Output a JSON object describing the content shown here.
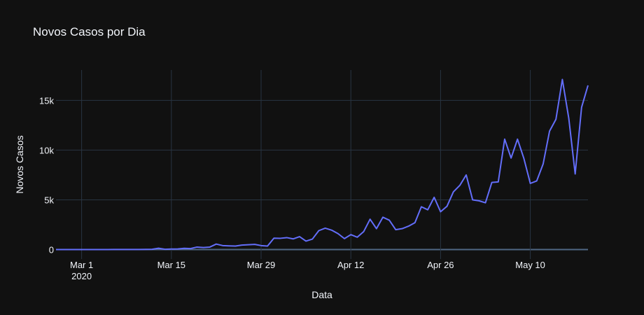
{
  "chart_data": {
    "type": "line",
    "title": "Novos Casos por Dia",
    "xlabel": "Data",
    "ylabel": "Novos Casos",
    "x": [
      "2020-02-26",
      "2020-02-27",
      "2020-02-28",
      "2020-02-29",
      "2020-03-01",
      "2020-03-02",
      "2020-03-03",
      "2020-03-04",
      "2020-03-05",
      "2020-03-06",
      "2020-03-07",
      "2020-03-08",
      "2020-03-09",
      "2020-03-10",
      "2020-03-11",
      "2020-03-12",
      "2020-03-13",
      "2020-03-14",
      "2020-03-15",
      "2020-03-16",
      "2020-03-17",
      "2020-03-18",
      "2020-03-19",
      "2020-03-20",
      "2020-03-21",
      "2020-03-22",
      "2020-03-23",
      "2020-03-24",
      "2020-03-25",
      "2020-03-26",
      "2020-03-27",
      "2020-03-28",
      "2020-03-29",
      "2020-03-30",
      "2020-03-31",
      "2020-04-01",
      "2020-04-02",
      "2020-04-03",
      "2020-04-04",
      "2020-04-05",
      "2020-04-06",
      "2020-04-07",
      "2020-04-08",
      "2020-04-09",
      "2020-04-10",
      "2020-04-11",
      "2020-04-12",
      "2020-04-13",
      "2020-04-14",
      "2020-04-15",
      "2020-04-16",
      "2020-04-17",
      "2020-04-18",
      "2020-04-19",
      "2020-04-20",
      "2020-04-21",
      "2020-04-22",
      "2020-04-23",
      "2020-04-24",
      "2020-04-25",
      "2020-04-26",
      "2020-04-27",
      "2020-04-28",
      "2020-04-29",
      "2020-04-30",
      "2020-05-01",
      "2020-05-02",
      "2020-05-03",
      "2020-05-04",
      "2020-05-05",
      "2020-05-06",
      "2020-05-07",
      "2020-05-08",
      "2020-05-09",
      "2020-05-10",
      "2020-05-11",
      "2020-05-12",
      "2020-05-13",
      "2020-05-14",
      "2020-05-15",
      "2020-05-16",
      "2020-05-17",
      "2020-05-18",
      "2020-05-19"
    ],
    "values": [
      1,
      0,
      0,
      1,
      0,
      0,
      0,
      1,
      4,
      6,
      6,
      6,
      5,
      6,
      18,
      25,
      130,
      30,
      50,
      60,
      120,
      100,
      250,
      200,
      250,
      550,
      400,
      370,
      350,
      450,
      480,
      520,
      400,
      350,
      1140,
      1130,
      1200,
      1070,
      1300,
      850,
      1050,
      1900,
      2150,
      1950,
      1600,
      1100,
      1500,
      1240,
      1800,
      3050,
      2100,
      3250,
      2950,
      2000,
      2100,
      2350,
      2700,
      4300,
      4000,
      5250,
      3800,
      4350,
      5800,
      6450,
      7500,
      5000,
      4900,
      4700,
      6750,
      6800,
      11100,
      9200,
      11100,
      9150,
      6650,
      6900,
      8600,
      11900,
      13100,
      17100,
      13200,
      7600,
      14300,
      16500
    ],
    "color": "#636efa",
    "xlim": [
      "2020-02-26",
      "2020-05-19"
    ],
    "xticks": [
      {
        "value": "2020-03-01",
        "label": "Mar 1\n2020"
      },
      {
        "value": "2020-03-15",
        "label": "Mar 15"
      },
      {
        "value": "2020-03-29",
        "label": "Mar 29"
      },
      {
        "value": "2020-04-12",
        "label": "Apr 12"
      },
      {
        "value": "2020-04-26",
        "label": "Apr 26"
      },
      {
        "value": "2020-05-10",
        "label": "May 10"
      }
    ],
    "ylim": [
      -950,
      18050
    ],
    "yticks": [
      0,
      {
        "value": 5000,
        "label": "5k"
      },
      {
        "value": 10000,
        "label": "10k"
      },
      {
        "value": 15000,
        "label": "15k"
      }
    ],
    "grid": true
  }
}
